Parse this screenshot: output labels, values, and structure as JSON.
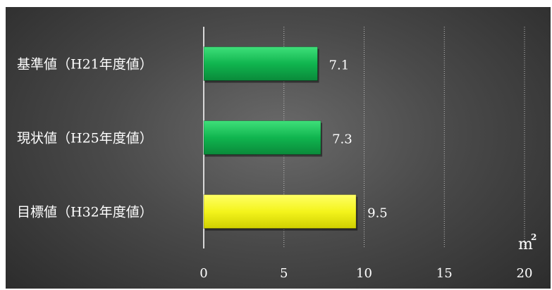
{
  "chart_data": {
    "type": "bar",
    "orientation": "horizontal",
    "categories": [
      "基準値（H21年度値）",
      "現状値（H25年度値）",
      "目標値（H32年度値）"
    ],
    "values": [
      7.1,
      7.3,
      9.5
    ],
    "value_labels": [
      "7.1",
      "7.3",
      "9.5"
    ],
    "bar_colors": [
      "#0fb14f",
      "#0fb14f",
      "#f2f21a"
    ],
    "xlim": [
      0,
      20
    ],
    "x_ticks": [
      0,
      5,
      10,
      15,
      20
    ],
    "unit": "m",
    "unit_superscript": "2",
    "title": "",
    "xlabel": "",
    "ylabel": "",
    "grid": true,
    "legend": false
  }
}
